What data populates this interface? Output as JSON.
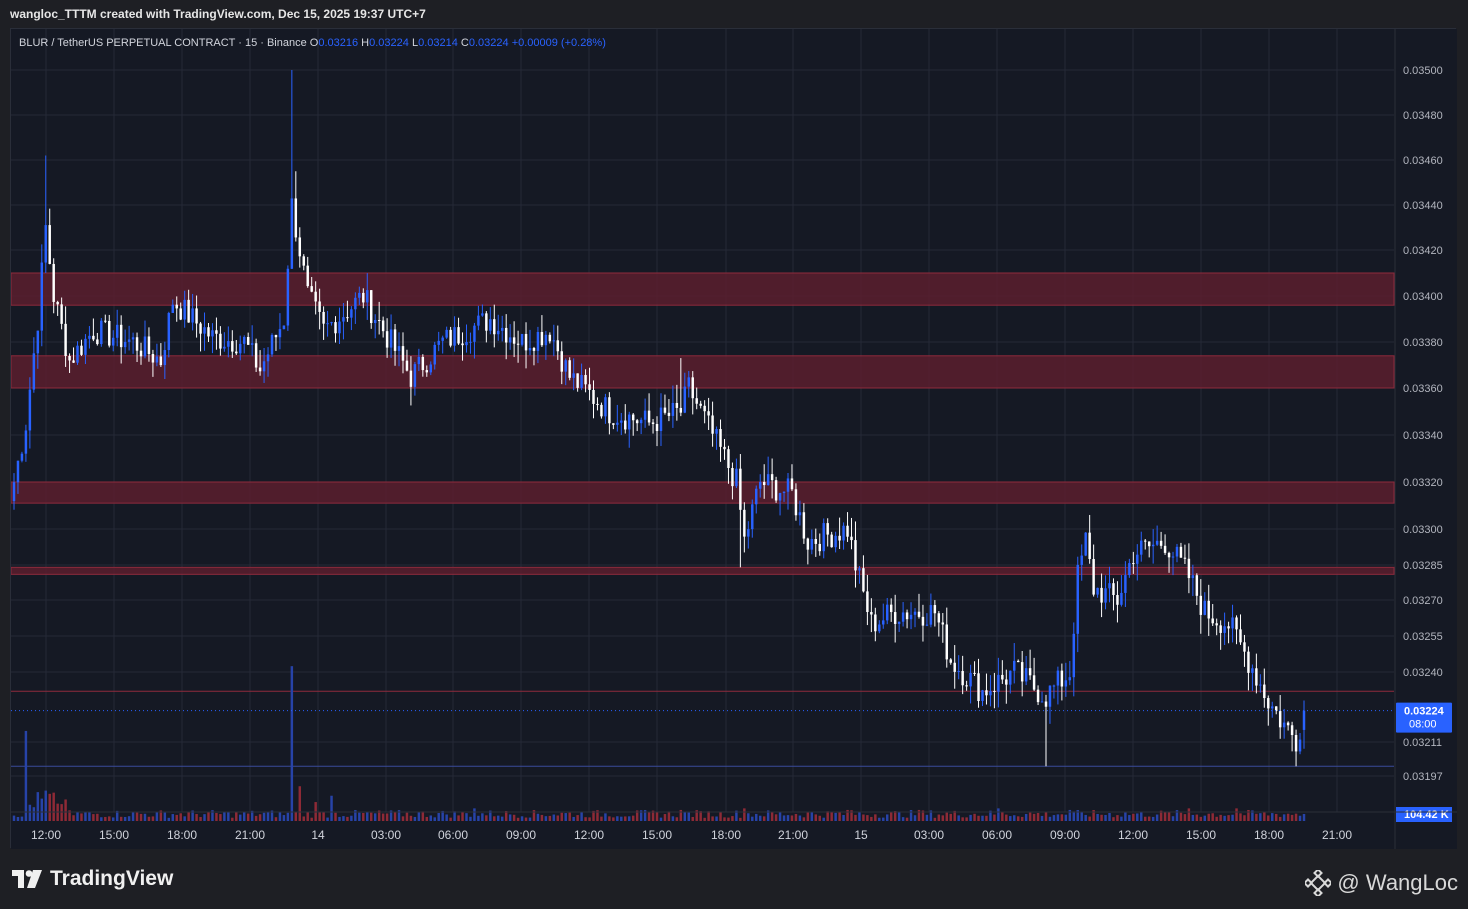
{
  "header": {
    "text": "wangloc_TTTM created with TradingView.com, Dec 15, 2025 19:37 UTC+7"
  },
  "legend": {
    "symbol": "BLUR / TetherUS PERPETUAL CONTRACT · 15 · Binance",
    "o_label": "O",
    "o_value": "0.03216",
    "h_label": "H",
    "h_value": "0.03224",
    "l_label": "L",
    "l_value": "0.03214",
    "c_label": "C",
    "c_value": "0.03224",
    "change": "+0.00009 (+0.28%)"
  },
  "colors": {
    "up": "#2962ff",
    "down": "#ffffff",
    "zone": "#5a1f2e",
    "vol_up": "#2743a8",
    "vol_down": "#8e2a36",
    "accent": "#2962ff"
  },
  "footer": {
    "logo_text": "TradingView",
    "author": "@ WangLoc"
  },
  "chart_data": {
    "type": "candlestick",
    "y_ticks": [
      "0.03500",
      "0.03480",
      "0.03460",
      "0.03440",
      "0.03420",
      "0.03400",
      "0.03380",
      "0.03360",
      "0.03340",
      "0.03320",
      "0.03300",
      "0.03285",
      "0.03270",
      "0.03255",
      "0.03240",
      "0.03211",
      "0.03197"
    ],
    "y_range": [
      0.03184,
      0.03505
    ],
    "x_ticks": [
      "12:00",
      "15:00",
      "18:00",
      "21:00",
      "14",
      "03:00",
      "06:00",
      "09:00",
      "12:00",
      "15:00",
      "18:00",
      "21:00",
      "15",
      "03:00",
      "06:00",
      "09:00",
      "12:00",
      "15:00",
      "18:00",
      "21:00"
    ],
    "last_price": {
      "value": "0.03224",
      "countdown": "08:00"
    },
    "volume_label": "104.42 K",
    "zones": [
      {
        "from": 0.03396,
        "to": 0.0341
      },
      {
        "from": 0.0336,
        "to": 0.03374
      },
      {
        "from": 0.03311,
        "to": 0.0332
      },
      {
        "from": 0.03281,
        "to": 0.03284
      }
    ],
    "lines": [
      {
        "value": 0.03232
      },
      {
        "value": 0.03201
      }
    ],
    "anchors": [
      [
        0,
        0.0332
      ],
      [
        3,
        0.03345
      ],
      [
        6,
        0.0339
      ],
      [
        8,
        0.0343
      ],
      [
        10,
        0.034
      ],
      [
        14,
        0.03372
      ],
      [
        20,
        0.03385
      ],
      [
        30,
        0.0338
      ],
      [
        37,
        0.03372
      ],
      [
        40,
        0.03398
      ],
      [
        50,
        0.03382
      ],
      [
        58,
        0.0338
      ],
      [
        62,
        0.03368
      ],
      [
        68,
        0.0339
      ],
      [
        70,
        0.0344
      ],
      [
        74,
        0.034
      ],
      [
        78,
        0.03385
      ],
      [
        88,
        0.034
      ],
      [
        100,
        0.03365
      ],
      [
        108,
        0.0338
      ],
      [
        120,
        0.0339
      ],
      [
        128,
        0.0338
      ],
      [
        135,
        0.03385
      ],
      [
        140,
        0.03365
      ],
      [
        150,
        0.0335
      ],
      [
        160,
        0.03345
      ],
      [
        168,
        0.0335
      ],
      [
        170,
        0.0336
      ],
      [
        176,
        0.0334
      ],
      [
        182,
        0.0332
      ],
      [
        184,
        0.03295
      ],
      [
        188,
        0.0332
      ],
      [
        196,
        0.03315
      ],
      [
        200,
        0.03295
      ],
      [
        210,
        0.033
      ],
      [
        212,
        0.03285
      ],
      [
        216,
        0.0326
      ],
      [
        222,
        0.03265
      ],
      [
        232,
        0.03265
      ],
      [
        236,
        0.03245
      ],
      [
        244,
        0.03232
      ],
      [
        252,
        0.0324
      ],
      [
        260,
        0.0323
      ],
      [
        266,
        0.0324
      ],
      [
        268,
        0.0328
      ],
      [
        270,
        0.03295
      ],
      [
        272,
        0.03275
      ],
      [
        278,
        0.0327
      ],
      [
        282,
        0.0329
      ],
      [
        290,
        0.03295
      ],
      [
        296,
        0.0328
      ],
      [
        300,
        0.03265
      ],
      [
        306,
        0.0326
      ],
      [
        312,
        0.03242
      ],
      [
        316,
        0.03228
      ],
      [
        320,
        0.03218
      ],
      [
        323,
        0.03212
      ],
      [
        325,
        0.03224
      ]
    ],
    "volume_spikes": [
      [
        3,
        0.57
      ],
      [
        70,
        0.98
      ],
      [
        72,
        0.22
      ],
      [
        76,
        0.12
      ],
      [
        80,
        0.16
      ],
      [
        116,
        0.08
      ],
      [
        168,
        0.07
      ],
      [
        184,
        0.08
      ],
      [
        210,
        0.07
      ],
      [
        228,
        0.07
      ],
      [
        248,
        0.08
      ],
      [
        266,
        0.07
      ],
      [
        296,
        0.08
      ],
      [
        308,
        0.08
      ]
    ]
  }
}
